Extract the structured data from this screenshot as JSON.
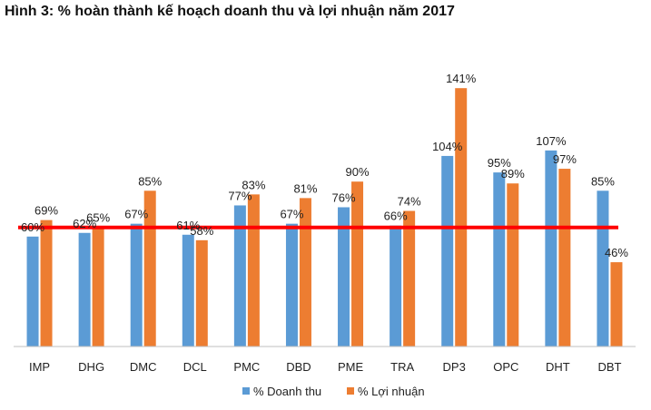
{
  "title": "Hình 3: % hoàn thành kế hoạch doanh thu và lợi nhuận năm 2017",
  "colors": {
    "revenue": "#5b9bd5",
    "profit": "#ed7d31",
    "reference_line": "#ff0000",
    "axis": "#bfbfbf"
  },
  "chart_data": {
    "type": "bar",
    "title": "Hình 3: % hoàn thành kế hoạch doanh thu và lợi nhuận năm 2017",
    "xlabel": "",
    "ylabel": "",
    "ylim": [
      0,
      145
    ],
    "grid": false,
    "legend_position": "bottom",
    "reference_line": 65,
    "categories": [
      "IMP",
      "DHG",
      "DMC",
      "DCL",
      "PMC",
      "DBD",
      "PME",
      "TRA",
      "DP3",
      "OPC",
      "DHT",
      "DBT"
    ],
    "series": [
      {
        "name": "% Doanh thu",
        "values": [
          60,
          62,
          67,
          61,
          77,
          67,
          76,
          66,
          104,
          95,
          107,
          85
        ],
        "labels": [
          "60%",
          "62%",
          "67%",
          "61%",
          "77%",
          "67%",
          "76%",
          "66%",
          "104%",
          "95%",
          "107%",
          "85%"
        ]
      },
      {
        "name": "% Lợi nhuận",
        "values": [
          69,
          65,
          85,
          58,
          83,
          81,
          90,
          74,
          141,
          89,
          97,
          46
        ],
        "labels": [
          "69%",
          "65%",
          "85%",
          "58%",
          "83%",
          "81%",
          "90%",
          "74%",
          "141%",
          "89%",
          "97%",
          "46%"
        ]
      }
    ]
  }
}
